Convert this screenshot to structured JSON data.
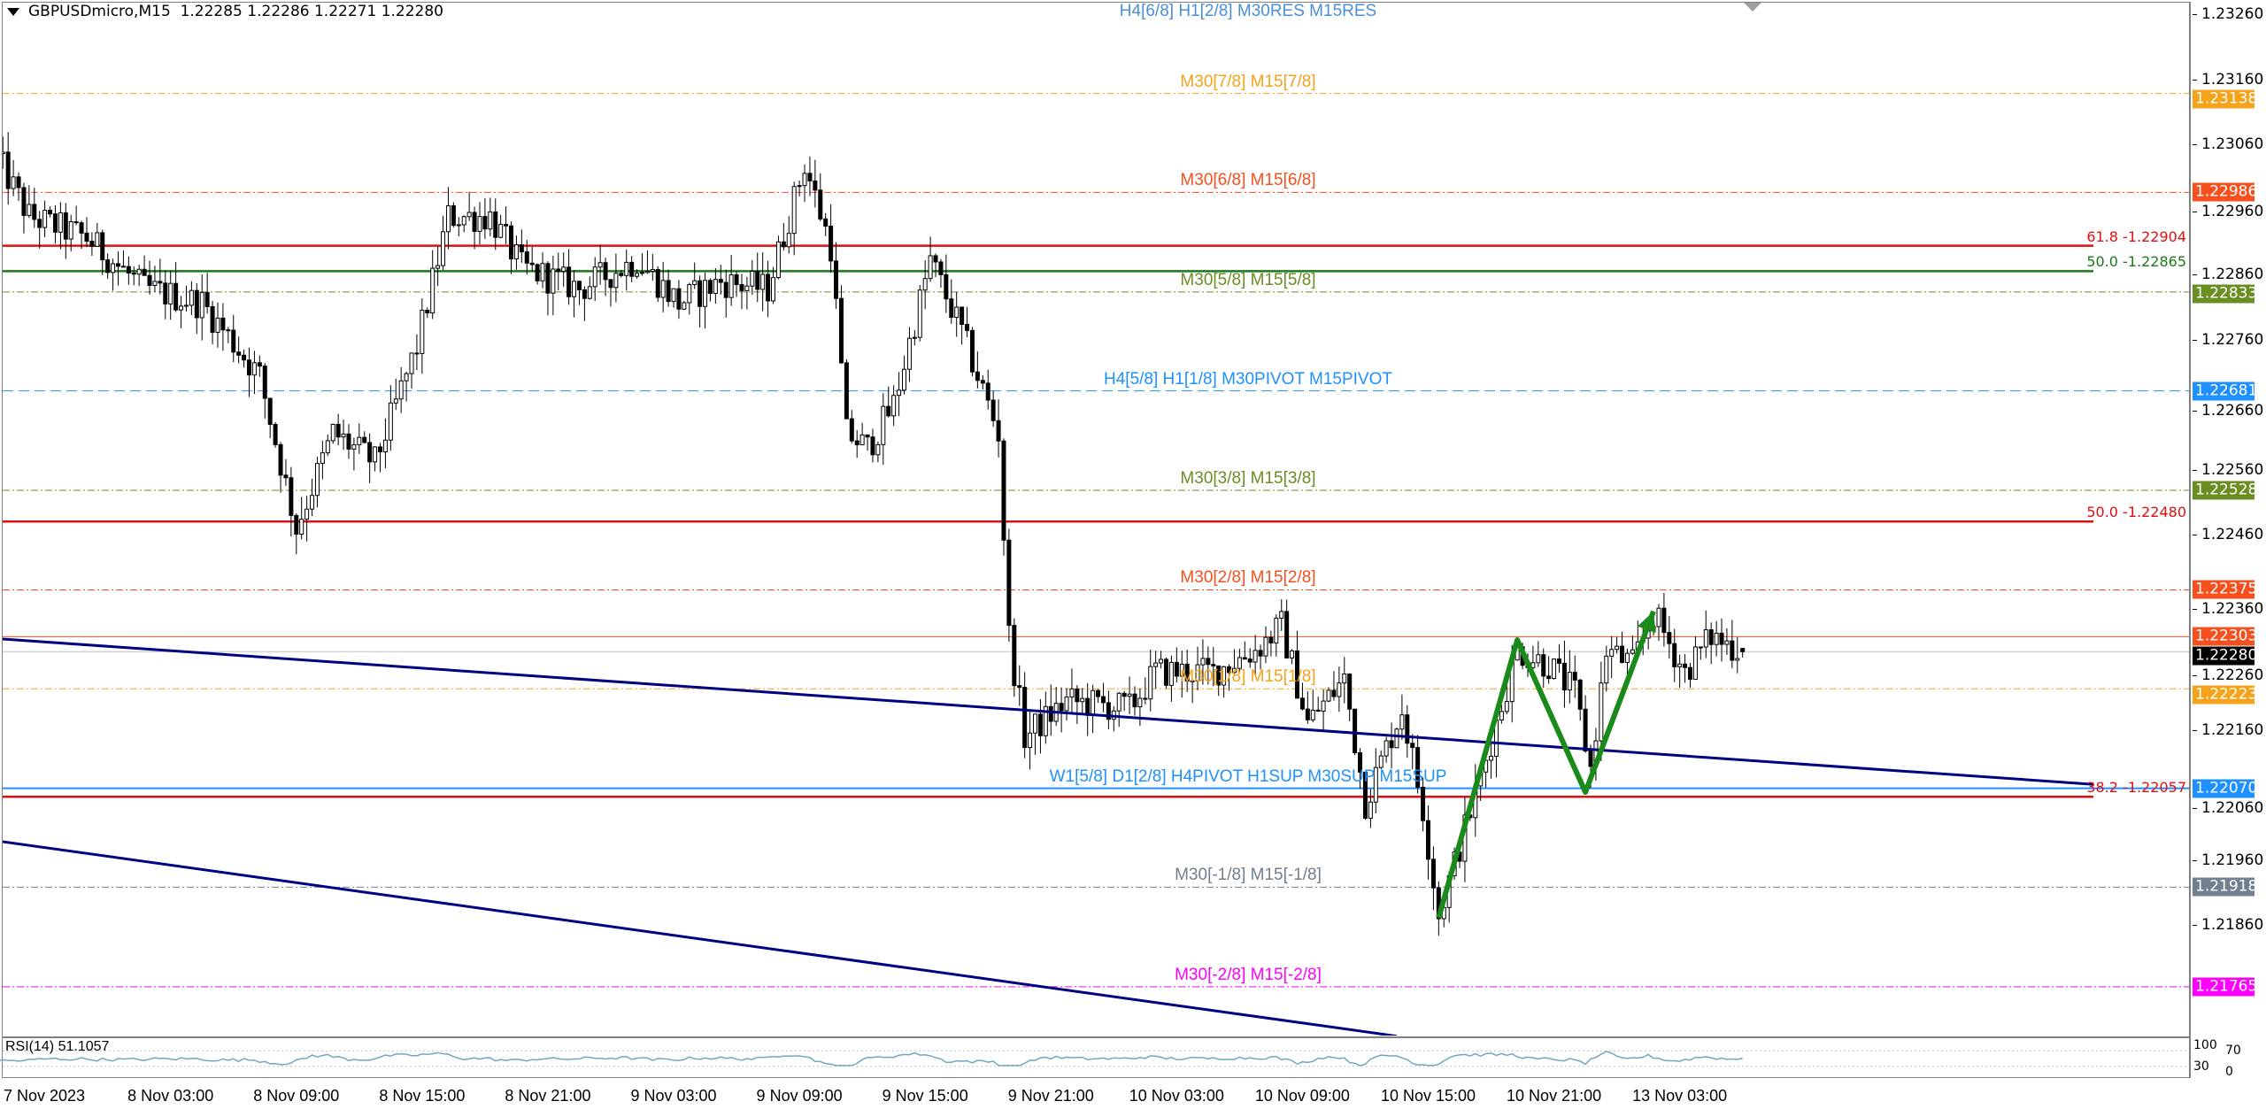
{
  "header": {
    "symbol_timeframe": "GBPUSDmicro,M15",
    "ohlc": "1.22285 1.22286 1.22271 1.22280"
  },
  "chart_data": {
    "type": "candlestick",
    "symbol": "GBPUSDmicro",
    "timeframe": "M15",
    "colors": {
      "bull_body": "#ffffff",
      "bear_body": "#000000",
      "wick": "#000000",
      "background": "#ffffff"
    },
    "price_axis": {
      "range": [
        1.2169,
        1.2328
      ],
      "ticks": [
        "1.23260",
        "1.23160",
        "1.23060",
        "1.22960",
        "1.22860",
        "1.22760",
        "1.22660",
        "1.22560",
        "1.22460",
        "1.22360",
        "1.22260",
        "1.22160",
        "1.22060",
        "1.21960",
        "1.21860"
      ]
    },
    "time_axis_labels": [
      "7 Nov 2023",
      "8 Nov 03:00",
      "8 Nov 09:00",
      "8 Nov 15:00",
      "8 Nov 21:00",
      "9 Nov 03:00",
      "9 Nov 09:00",
      "9 Nov 15:00",
      "9 Nov 21:00",
      "10 Nov 03:00",
      "10 Nov 09:00",
      "10 Nov 15:00",
      "10 Nov 21:00",
      "13 Nov 03:00"
    ],
    "price_path": [
      [
        "7 Nov 18:45",
        1.23038
      ],
      [
        "7 Nov 20:15",
        1.22949
      ],
      [
        "7 Nov 23:00",
        1.22916
      ],
      [
        "8 Nov 01:45",
        1.22838
      ],
      [
        "8 Nov 04:30",
        1.22816
      ],
      [
        "8 Nov 07:15",
        1.22704
      ],
      [
        "8 Nov 09:00",
        1.2247
      ],
      [
        "8 Nov 10:45",
        1.22616
      ],
      [
        "8 Nov 12:45",
        1.22571
      ],
      [
        "8 Nov 14:45",
        1.22749
      ],
      [
        "8 Nov 16:15",
        1.22949
      ],
      [
        "8 Nov 18:15",
        1.22949
      ],
      [
        "8 Nov 19:45",
        1.22871
      ],
      [
        "8 Nov 22:30",
        1.22838
      ],
      [
        "9 Nov 01:15",
        1.22882
      ],
      [
        "9 Nov 03:15",
        1.22816
      ],
      [
        "9 Nov 05:15",
        1.22849
      ],
      [
        "9 Nov 07:30",
        1.22838
      ],
      [
        "9 Nov 09:15",
        1.2303
      ],
      [
        "9 Nov 10:30",
        1.22904
      ],
      [
        "9 Nov 11:15",
        1.22616
      ],
      [
        "9 Nov 12:15",
        1.22593
      ],
      [
        "9 Nov 13:30",
        1.2266
      ],
      [
        "9 Nov 15:15",
        1.22882
      ],
      [
        "9 Nov 16:45",
        1.22771
      ],
      [
        "9 Nov 18:30",
        1.22616
      ],
      [
        "9 Nov 19:00",
        1.22304
      ],
      [
        "9 Nov 19:45",
        1.22149
      ],
      [
        "9 Nov 21:45",
        1.22204
      ],
      [
        "10 Nov 00:45",
        1.22193
      ],
      [
        "10 Nov 02:00",
        1.22249
      ],
      [
        "10 Nov 04:45",
        1.22249
      ],
      [
        "10 Nov 06:45",
        1.22282
      ],
      [
        "10 Nov 08:00",
        1.2232
      ],
      [
        "10 Nov 09:15",
        1.22171
      ],
      [
        "10 Nov 11:00",
        1.22238
      ],
      [
        "10 Nov 12:00",
        1.22049
      ],
      [
        "10 Nov 13:45",
        1.22193
      ],
      [
        "10 Nov 14:45",
        1.22038
      ],
      [
        "10 Nov 15:30",
        1.21875
      ],
      [
        "10 Nov 17:15",
        1.2206
      ],
      [
        "10 Nov 19:15",
        1.22282
      ],
      [
        "10 Nov 20:45",
        1.2226
      ],
      [
        "10 Nov 22:00",
        1.22216
      ],
      [
        "10 Nov 22:45",
        1.221
      ],
      [
        "10 Nov 23:30",
        1.22282
      ],
      [
        "13 Nov 00:45",
        1.2226
      ],
      [
        "13 Nov 01:45",
        1.22338
      ],
      [
        "13 Nov 03:15",
        1.22249
      ],
      [
        "13 Nov 04:30",
        1.22304
      ],
      [
        "13 Nov 06:00",
        1.2228
      ]
    ],
    "last_bar": {
      "open": 1.22285,
      "high": 1.22286,
      "low": 1.22271,
      "close": 1.2228
    },
    "levels": [
      {
        "label": "H4[6/8] H1[2/8] M30RES M15RES",
        "price": 1.2329,
        "color": "#4a90d9",
        "style": "none"
      },
      {
        "label": "M30[7/8] M15[7/8]",
        "price": 1.23138,
        "price_label": "1.23138",
        "color": "#f5a31a",
        "style": "dashdot"
      },
      {
        "label": "M30[6/8] M15[6/8]",
        "price": 1.22986,
        "price_label": "1.22986",
        "color": "#f5501e",
        "style": "dashdot"
      },
      {
        "label": "M30[5/8] M15[5/8]",
        "price": 1.22833,
        "price_label": "1.22833",
        "color": "#6b8e23",
        "style": "dashdot"
      },
      {
        "label": "H4[5/8] H1[1/8] M30PIVOT M15PIVOT",
        "price": 1.22681,
        "price_label": "1.22681",
        "color": "#1e90ff",
        "style": "dashed"
      },
      {
        "label": "M30[3/8] M15[3/8]",
        "price": 1.22528,
        "price_label": "1.22528",
        "color": "#6b8e23",
        "style": "dashdot"
      },
      {
        "label": "M30[2/8] M15[2/8]",
        "price": 1.22375,
        "price_label": "1.22375",
        "color": "#f5501e",
        "style": "dashdot"
      },
      {
        "label": "",
        "price": 1.22303,
        "price_label": "1.22303",
        "color": "#f5501e",
        "style": "solid"
      },
      {
        "label": "",
        "price": 1.2228,
        "price_label": "1.22280",
        "color": "#000000",
        "style": "current"
      },
      {
        "label": "M30[1/8] M15[1/8]",
        "price": 1.22223,
        "price_label": "1.22223",
        "color": "#f5a31a",
        "style": "dashdot"
      },
      {
        "label": "W1[5/8] D1[2/8] H4PIVOT H1SUP M30SUP M15SUP",
        "price": 1.2207,
        "price_label": "1.22070",
        "color": "#1e90ff",
        "style": "solid"
      },
      {
        "label": "M30[-1/8] M15[-1/8]",
        "price": 1.21918,
        "price_label": "1.21918",
        "color": "#708090",
        "style": "dashdot"
      },
      {
        "label": "M30[-2/8] M15[-2/8]",
        "price": 1.21765,
        "price_label": "1.21765",
        "color": "#ff00ff",
        "style": "dashdot"
      }
    ],
    "fibo": [
      {
        "label": "61.8 -1.22904",
        "price": 1.22904,
        "color": "#e01010"
      },
      {
        "label": "50.0 -1.22865",
        "price": 1.22865,
        "color": "#1a7a1a"
      },
      {
        "label": "50.0 -1.22480",
        "price": 1.2248,
        "color": "#e01010"
      },
      {
        "label": "38.2 -1.22057",
        "price": 1.22057,
        "color": "#e01010"
      }
    ],
    "trendlines": [
      {
        "color": "#000080",
        "points": [
          [
            "7 Nov 18:45",
            1.223
          ],
          [
            "13 Nov 22:45",
            1.22076
          ]
        ]
      },
      {
        "color": "#000080",
        "points": [
          [
            "7 Nov 18:45",
            1.21989
          ],
          [
            "10 Nov 13:30",
            1.21689
          ]
        ]
      }
    ],
    "zigzag": {
      "color": "#1a8a1a",
      "points": [
        [
          "10 Nov 15:30",
          1.21871
        ],
        [
          "10 Nov 19:15",
          1.22298
        ],
        [
          "10 Nov 22:30",
          1.22064
        ],
        [
          "13 Nov 01:45",
          1.22342
        ]
      ]
    },
    "rsi": {
      "label": "RSI(14) 51.1057",
      "period": 14,
      "value": 51.1057,
      "levels": [
        70,
        30
      ],
      "scale_labels": [
        "100",
        "70",
        "30",
        "0"
      ],
      "color": "#6fa8c0"
    }
  }
}
